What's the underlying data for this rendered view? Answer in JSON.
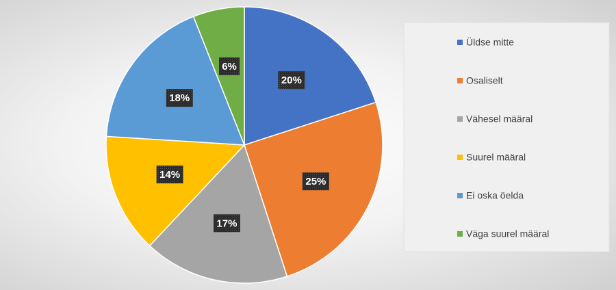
{
  "chart_data": {
    "type": "pie",
    "categories": [
      "Üldse mitte",
      "Osaliselt",
      "Vähesel määral",
      "Suurel määral",
      "Ei oska öelda",
      "Väga suurel määral"
    ],
    "values": [
      20,
      25,
      17,
      14,
      18,
      6
    ],
    "value_labels": [
      "20%",
      "25%",
      "17%",
      "14%",
      "18%",
      "6%"
    ],
    "colors": [
      "#4472c4",
      "#ed7d31",
      "#a5a5a5",
      "#ffc000",
      "#5b9bd5",
      "#70ad47"
    ],
    "legend": "right"
  }
}
